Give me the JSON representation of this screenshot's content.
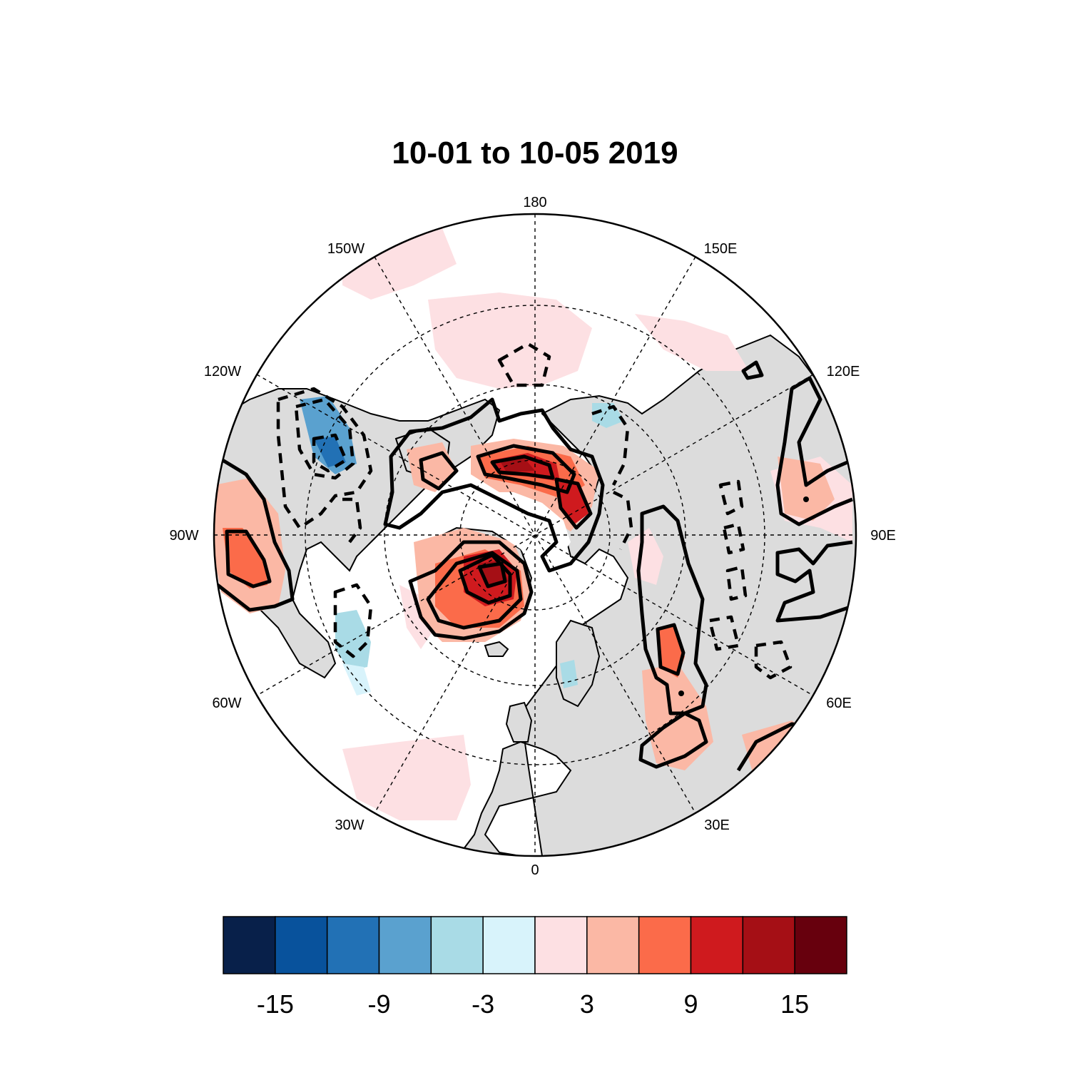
{
  "title": "10-01 to 10-05 2019",
  "map": {
    "projection": "north-polar-stereographic",
    "land_color": "#dcdcdc",
    "ocean_color": "#ffffff",
    "longitude_labels": [
      {
        "lon": 180,
        "text": "180"
      },
      {
        "lon": -150,
        "text": "150W"
      },
      {
        "lon": 150,
        "text": "150E"
      },
      {
        "lon": -120,
        "text": "120W"
      },
      {
        "lon": 120,
        "text": "120E"
      },
      {
        "lon": -90,
        "text": "90W"
      },
      {
        "lon": 90,
        "text": "90E"
      },
      {
        "lon": -60,
        "text": "60W"
      },
      {
        "lon": 60,
        "text": "60E"
      },
      {
        "lon": -30,
        "text": "30W"
      },
      {
        "lon": 30,
        "text": "30E"
      },
      {
        "lon": 0,
        "text": "0"
      }
    ]
  },
  "colorbar": {
    "colors": [
      "#08204a",
      "#08529c",
      "#2271b5",
      "#5aa1cf",
      "#a9dbe6",
      "#d8f3fb",
      "#fde0e3",
      "#fbb8a5",
      "#fb6b4a",
      "#cf1a1e",
      "#a50f15",
      "#67000d"
    ],
    "tick_labels": [
      "-15",
      "-9",
      "-3",
      "3",
      "9",
      "15"
    ]
  }
}
